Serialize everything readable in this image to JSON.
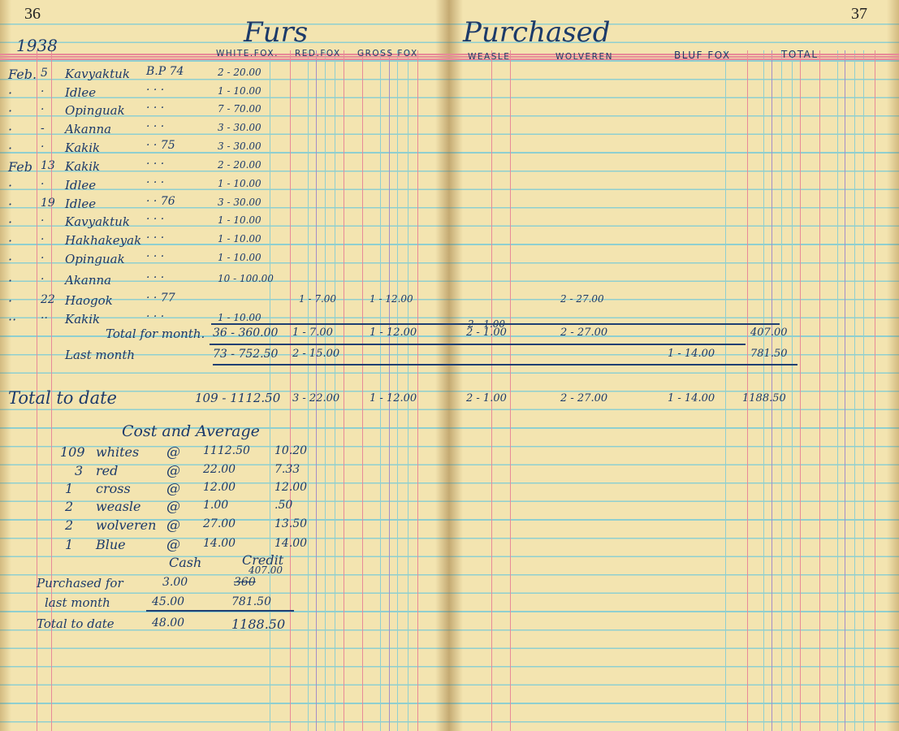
{
  "page_numbers": {
    "left": "36",
    "right": "37"
  },
  "title": {
    "left": "Furs",
    "right": "Purchased"
  },
  "year": "1938",
  "columns": {
    "white_fox": "WHITE.FOX.",
    "red_fox": "RED.FOX",
    "cross_fox": "GROSS FOX",
    "weasle": "WEASLE",
    "wolveren": "WOLVEREN",
    "blue_fox": "BLUF FOX",
    "total": "TOTAL"
  },
  "entries": [
    {
      "month": "Feb.",
      "day": "5",
      "name": "Kavyaktuk",
      "ref": "B.P 74",
      "white_fox": "2 - 20.00"
    },
    {
      "month": "·",
      "day": "·",
      "name": "Idlee",
      "ref": "· · ·",
      "white_fox": "1 - 10.00"
    },
    {
      "month": "·",
      "day": "·",
      "name": "Opinguak",
      "ref": "· · ·",
      "white_fox": "7 - 70.00"
    },
    {
      "month": "·",
      "day": "-",
      "name": "Akanna",
      "ref": "· · ·",
      "white_fox": "3 - 30.00"
    },
    {
      "month": "·",
      "day": "·",
      "name": "Kakik",
      "ref": "· · 75",
      "white_fox": "3 - 30.00"
    },
    {
      "month": "Feb",
      "day": "13",
      "name": "Kakik",
      "ref": "· · ·",
      "white_fox": "2 - 20.00"
    },
    {
      "month": "·",
      "day": "·",
      "name": "Idlee",
      "ref": "· · ·",
      "white_fox": "1 - 10.00"
    },
    {
      "month": "·",
      "day": "19",
      "name": "Idlee",
      "ref": "· · 76",
      "white_fox": "3 - 30.00"
    },
    {
      "month": "·",
      "day": "·",
      "name": "Kavyaktuk",
      "ref": "· · ·",
      "white_fox": "1 - 10.00"
    },
    {
      "month": "·",
      "day": "·",
      "name": "Hakhakeyak",
      "ref": "· · ·",
      "white_fox": "1 - 10.00"
    },
    {
      "month": "·",
      "day": "·",
      "name": "Opinguak",
      "ref": "· · ·",
      "white_fox": "1 - 10.00"
    },
    {
      "month": "·",
      "day": "·",
      "name": "Akanna",
      "ref": "· · ·",
      "white_fox": "10 - 100.00"
    },
    {
      "month": "·",
      "day": "22",
      "name": "Haogok",
      "ref": "· · 77",
      "red_fox": "1 - 7.00",
      "cross_fox": "1 - 12.00",
      "wolveren": "2 - 27.00"
    },
    {
      "month": "··",
      "day": "··",
      "name": "Kakik",
      "ref": "· · ·",
      "white_fox": "1 - 10.00",
      "weasle": "2 - 1.00"
    }
  ],
  "totals": [
    {
      "label": "Total for month.",
      "white_fox": "36 - 360.00",
      "red_fox": "1 - 7.00",
      "cross_fox": "1 - 12.00",
      "weasle": "2 - 1.00",
      "wolveren": "2 - 27.00",
      "total": "407.00"
    },
    {
      "label": "Last month",
      "white_fox": "73 - 752.50",
      "red_fox": "2 - 15.00",
      "blue_fox": "1 - 14.00",
      "total": "781.50"
    },
    {
      "label": "Total to date",
      "white_fox": "109 - 1112.50",
      "red_fox": "3 - 22.00",
      "cross_fox": "1 - 12.00",
      "weasle": "2 - 1.00",
      "wolveren": "2 - 27.00",
      "blue_fox": "1 - 14.00",
      "total": "1188.50"
    }
  ],
  "cost_average": {
    "title": "Cost and Average",
    "items": [
      {
        "qty": "109",
        "item": "whites",
        "at": "@",
        "cost": "1112.50",
        "average": "10.20"
      },
      {
        "qty": "3",
        "item": "red",
        "at": "@",
        "cost": "22.00",
        "average": "7.33"
      },
      {
        "qty": "1",
        "item": "cross",
        "at": "@",
        "cost": "12.00",
        "average": "12.00"
      },
      {
        "qty": "2",
        "item": "weasle",
        "at": "@",
        "cost": "1.00",
        "average": ".50"
      },
      {
        "qty": "2",
        "item": "wolveren",
        "at": "@",
        "cost": "27.00",
        "average": "13.50"
      },
      {
        "qty": "1",
        "item": "Blue",
        "at": "@",
        "cost": "14.00",
        "average": "14.00"
      }
    ]
  },
  "cash_credit": {
    "cash_header": "Cash",
    "credit_header": "Credit",
    "rows": [
      {
        "label": "Purchased for",
        "cash": "3.00",
        "credit": "407.00",
        "credit_struck": "360"
      },
      {
        "label": "last month",
        "cash": "45.00",
        "credit": "781.50"
      },
      {
        "label": "Total to date",
        "cash": "48.00",
        "credit": "1188.50"
      }
    ]
  },
  "colors": {
    "paper": "#f3e4b0",
    "ink": "#1c3a6a",
    "rule_blue": "#8fcfd0",
    "rule_red": "#e88a98"
  }
}
